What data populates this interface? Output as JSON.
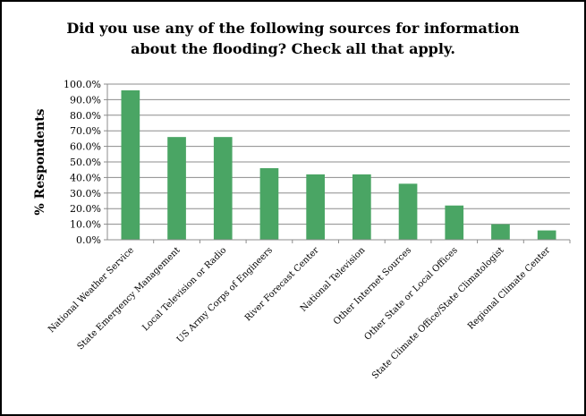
{
  "chart_data": {
    "type": "bar",
    "title_lines": [
      "Did you use any of the following sources for information",
      "about the flooding? Check all that apply."
    ],
    "xlabel": "",
    "ylabel": "% Respondents",
    "ylim": [
      0,
      100
    ],
    "ytick_step": 10,
    "yticks": [
      "0.0%",
      "10.0%",
      "20.0%",
      "30.0%",
      "40.0%",
      "50.0%",
      "60.0%",
      "70.0%",
      "80.0%",
      "90.0%",
      "100.0%"
    ],
    "grid": true,
    "legend": "none",
    "bar_color": "#4aa564",
    "categories": [
      "National Weather Service",
      "State Emergency Management",
      "Local Television or Radio",
      "US Army Corps of Engineers",
      "River Forecast Center",
      "National Television",
      "Other Internet Sources",
      "Other State or Local Offices",
      "State Climate Office/State Climatologist",
      "Regional Climate Center"
    ],
    "values": [
      96,
      66,
      66,
      46,
      42,
      42,
      36,
      22,
      10,
      6
    ]
  }
}
